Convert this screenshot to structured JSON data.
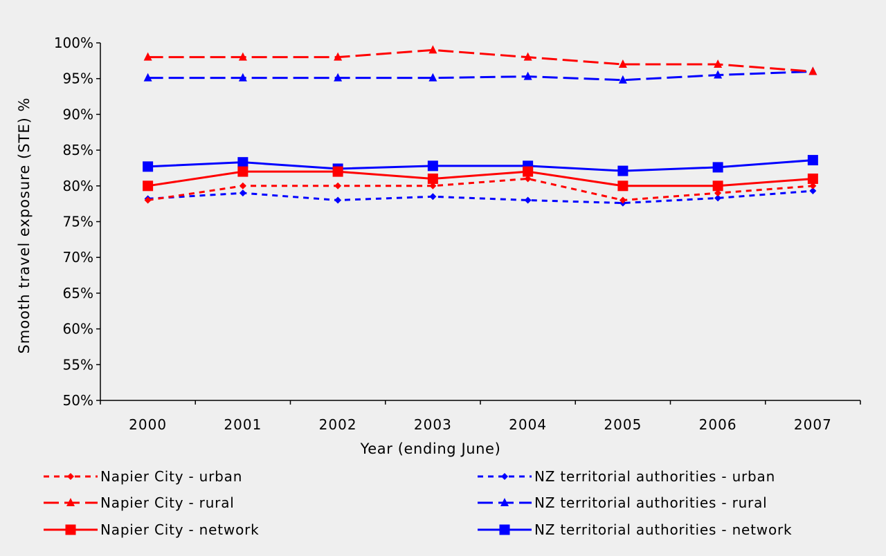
{
  "chart_data": {
    "type": "line",
    "title": "",
    "xlabel": "Year (ending June)",
    "ylabel": "Smooth travel exposure (STE) %",
    "ylim": [
      50,
      100
    ],
    "yticks": [
      50,
      55,
      60,
      65,
      70,
      75,
      80,
      85,
      90,
      95,
      100
    ],
    "ytick_labels": [
      "50%",
      "55%",
      "60%",
      "65%",
      "70%",
      "75%",
      "80%",
      "85%",
      "90%",
      "95%",
      "100%"
    ],
    "categories": [
      "2000",
      "2001",
      "2002",
      "2003",
      "2004",
      "2005",
      "2006",
      "2007"
    ],
    "grid": false,
    "legend_position": "bottom",
    "series": [
      {
        "name": "Napier City - urban",
        "color": "#FF0000",
        "dash": "dotted",
        "marker": "diamond",
        "values": [
          78,
          80,
          80,
          80,
          81,
          78,
          79,
          80
        ]
      },
      {
        "name": "Napier City - rural",
        "color": "#FF0000",
        "dash": "dashed",
        "marker": "triangle",
        "values": [
          98,
          98,
          98,
          99,
          98,
          97,
          97,
          96
        ]
      },
      {
        "name": "Napier City - network",
        "color": "#FF0000",
        "dash": "solid",
        "marker": "square",
        "values": [
          80,
          82,
          82,
          81,
          82,
          80,
          80,
          81
        ]
      },
      {
        "name": "NZ territorial authorities - urban",
        "color": "#0000FF",
        "dash": "dotted",
        "marker": "diamond",
        "values": [
          78.2,
          79,
          78,
          78.5,
          78,
          77.6,
          78.3,
          79.3
        ]
      },
      {
        "name": "NZ territorial authorities - rural",
        "color": "#0000FF",
        "dash": "dashed",
        "marker": "triangle",
        "values": [
          95.1,
          95.1,
          95.1,
          95.1,
          95.3,
          94.8,
          95.5,
          96
        ]
      },
      {
        "name": "NZ territorial authorities - network",
        "color": "#0000FF",
        "dash": "solid",
        "marker": "square",
        "values": [
          82.7,
          83.3,
          82.4,
          82.8,
          82.8,
          82.1,
          82.6,
          83.6
        ]
      }
    ]
  }
}
